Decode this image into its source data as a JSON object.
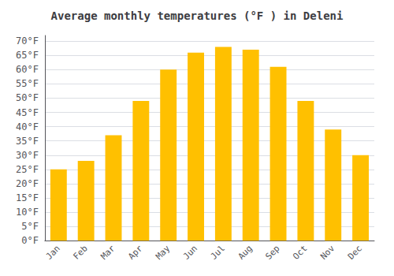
{
  "chart_data": {
    "type": "bar",
    "title": "Average monthly temperatures (°F ) in Deleni",
    "categories": [
      "Jan",
      "Feb",
      "Mar",
      "Apr",
      "May",
      "Jun",
      "Jul",
      "Aug",
      "Sep",
      "Oct",
      "Nov",
      "Dec"
    ],
    "values": [
      25,
      28,
      37,
      49,
      60,
      66,
      68,
      67,
      61,
      49,
      39,
      30
    ],
    "color": "#FFC000",
    "ylim": [
      0,
      72
    ],
    "yticks": [
      {
        "value": 0,
        "label": "0°F"
      },
      {
        "value": 5,
        "label": "5°F"
      },
      {
        "value": 10,
        "label": "10°F"
      },
      {
        "value": 15,
        "label": "15°F"
      },
      {
        "value": 20,
        "label": "20°F"
      },
      {
        "value": 25,
        "label": "25°F"
      },
      {
        "value": 30,
        "label": "30°F"
      },
      {
        "value": 35,
        "label": "35°F"
      },
      {
        "value": 40,
        "label": "40°F"
      },
      {
        "value": 45,
        "label": "45°F"
      },
      {
        "value": 50,
        "label": "50°F"
      },
      {
        "value": 55,
        "label": "55°F"
      },
      {
        "value": 60,
        "label": "60°F"
      },
      {
        "value": 65,
        "label": "65°F"
      },
      {
        "value": 70,
        "label": "70°F"
      }
    ],
    "grid": true
  }
}
